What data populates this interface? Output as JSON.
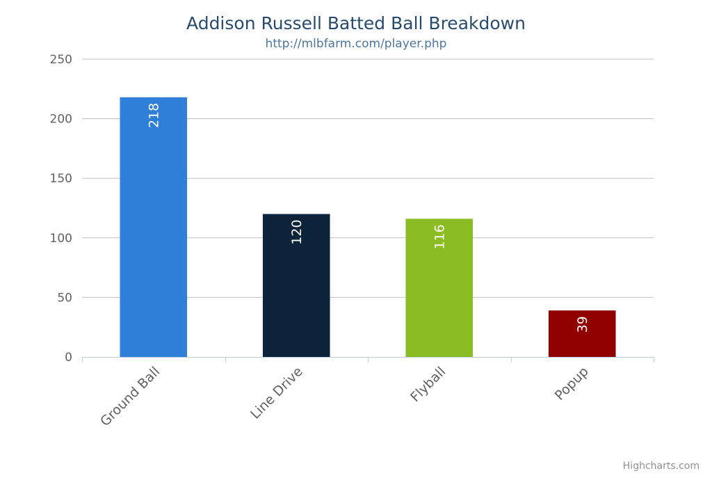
{
  "chart_data": {
    "type": "bar",
    "title": "Addison Russell Batted Ball Breakdown",
    "subtitle": "http://mlbfarm.com/player.php",
    "categories": [
      "Ground Ball",
      "Line Drive",
      "Flyball",
      "Popup"
    ],
    "values": [
      218,
      120,
      116,
      39
    ],
    "data_labels": [
      "218",
      "120",
      "116",
      "39"
    ],
    "colors": [
      "#2f7ed8",
      "#0d233a",
      "#8bbc21",
      "#910000"
    ],
    "ylim": [
      0,
      250
    ],
    "yticks": [
      "0",
      "50",
      "100",
      "150",
      "200",
      "250"
    ],
    "grid": true,
    "legend": "none",
    "xlabel": "",
    "ylabel": ""
  },
  "credits": "Highcharts.com"
}
